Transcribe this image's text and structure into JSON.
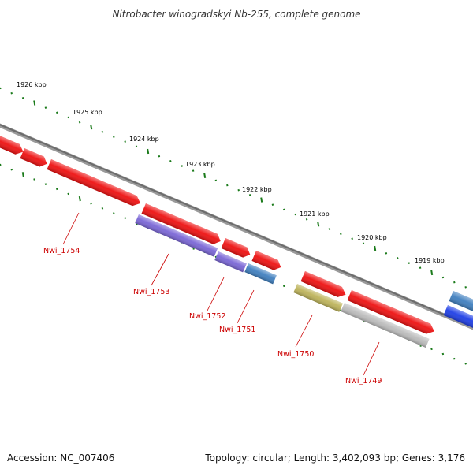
{
  "title": "Nitrobacter winogradskyi Nb-255, complete genome",
  "scale_labels": [
    {
      "label": "1926 kbp",
      "kbp": 1926
    },
    {
      "label": "1925 kbp",
      "kbp": 1925
    },
    {
      "label": "1924 kbp",
      "kbp": 1924
    },
    {
      "label": "1923 kbp",
      "kbp": 1923
    },
    {
      "label": "1922 kbp",
      "kbp": 1922
    },
    {
      "label": "1921 kbp",
      "kbp": 1921
    },
    {
      "label": "1920 kbp",
      "kbp": 1920
    },
    {
      "label": "1919 kbp",
      "kbp": 1919
    }
  ],
  "gene_labels": [
    "Nwi_1754",
    "Nwi_1753",
    "Nwi_1752",
    "Nwi_1751",
    "Nwi_1750",
    "Nwi_1749"
  ],
  "colors": {
    "backbone": "#7a7a7a",
    "tick": "#1a7a1a",
    "label": "#cc0000",
    "cds_red": "#ee1111",
    "cds_purple": "#7a66d6",
    "cds_steel": "#3f7fbf",
    "cds_olive": "#bdb35a",
    "cds_gray": "#bcbcbc",
    "cds_blue": "#1f3fe6"
  },
  "footer": {
    "accession": "Accession: NC_007406",
    "summary": "Topology: circular; Length: 3,402,093 bp; Genes: 3,176"
  }
}
